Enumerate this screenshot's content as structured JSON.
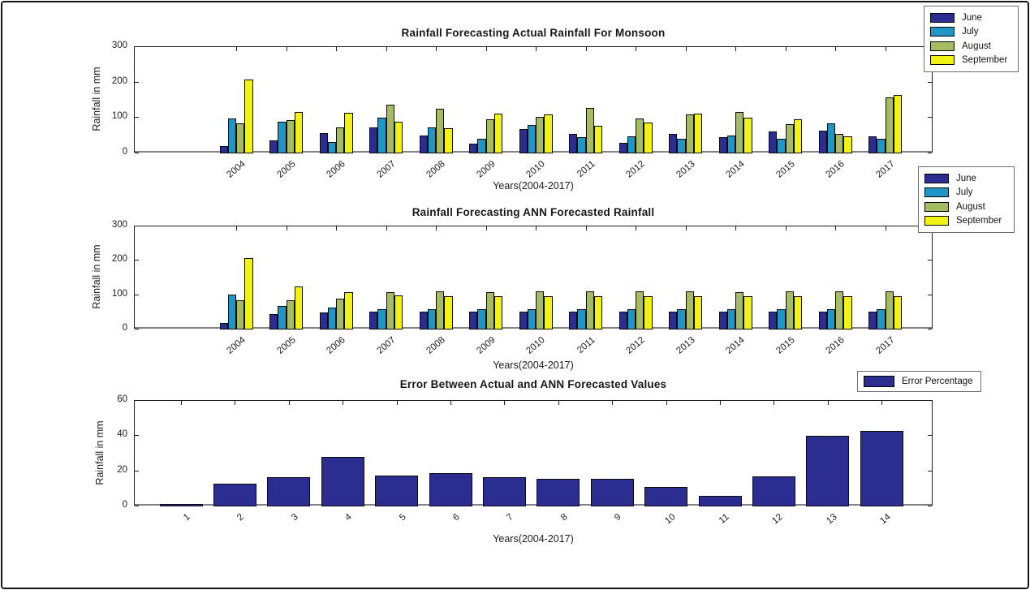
{
  "chart_data": [
    {
      "type": "bar",
      "title": "Rainfall Forecasting Actual Rainfall For Monsoon",
      "xlabel": "Years(2004-2017)",
      "ylabel": "Rainfall in mm",
      "ylim": [
        0,
        300
      ],
      "yticks": [
        0,
        100,
        200,
        300
      ],
      "grid": false,
      "legend_position": "outside-top-right",
      "categories": [
        "2004",
        "2005",
        "2006",
        "2007",
        "2008",
        "2009",
        "2010",
        "2011",
        "2012",
        "2013",
        "2014",
        "2015",
        "2016",
        "2017"
      ],
      "series": [
        {
          "name": "June",
          "color": "#2B2D90",
          "values": [
            21,
            36,
            57,
            73,
            51,
            27,
            69,
            56,
            29,
            54,
            46,
            62,
            63,
            47
          ]
        },
        {
          "name": "July",
          "color": "#1F96C6",
          "values": [
            99,
            89,
            33,
            100,
            73,
            42,
            80,
            45,
            47,
            41,
            50,
            42,
            84,
            41
          ]
        },
        {
          "name": "August",
          "color": "#A5BC62",
          "values": [
            85,
            93,
            73,
            137,
            126,
            96,
            102,
            129,
            99,
            110,
            116,
            82,
            54,
            159
          ]
        },
        {
          "name": "September",
          "color": "#F2F214",
          "values": [
            209,
            117,
            115,
            89,
            70,
            113,
            110,
            77,
            88,
            113,
            100,
            96,
            48,
            164
          ]
        }
      ]
    },
    {
      "type": "bar",
      "title": "Rainfall Forecasting ANN Forecasted Rainfall",
      "xlabel": "Years(2004-2017)",
      "ylabel": "Rainfall in mm",
      "ylim": [
        0,
        300
      ],
      "yticks": [
        0,
        100,
        200,
        300
      ],
      "grid": false,
      "legend_position": "outside-top-right",
      "categories": [
        "2004",
        "2005",
        "2006",
        "2007",
        "2008",
        "2009",
        "2010",
        "2011",
        "2012",
        "2013",
        "2014",
        "2015",
        "2016",
        "2017"
      ],
      "series": [
        {
          "name": "June",
          "color": "#2B2D90",
          "values": [
            20,
            45,
            50,
            52,
            53,
            53,
            52,
            52,
            52,
            52,
            52,
            52,
            52,
            52
          ]
        },
        {
          "name": "July",
          "color": "#1F96C6",
          "values": [
            101,
            68,
            64,
            60,
            59,
            59,
            58,
            58,
            58,
            58,
            58,
            58,
            58,
            58
          ]
        },
        {
          "name": "August",
          "color": "#A5BC62",
          "values": [
            85,
            85,
            90,
            108,
            110,
            109,
            110,
            110,
            110,
            110,
            109,
            110,
            110,
            110
          ]
        },
        {
          "name": "September",
          "color": "#F2F214",
          "values": [
            209,
            125,
            108,
            99,
            97,
            97,
            97,
            98,
            97,
            97,
            97,
            97,
            97,
            97
          ]
        }
      ]
    },
    {
      "type": "bar",
      "title": "Error Between Actual and ANN Forecasted Values",
      "xlabel": "Years(2004-2017)",
      "ylabel": "Rainfall in mm",
      "ylim": [
        0,
        60
      ],
      "yticks": [
        0,
        20,
        40,
        60
      ],
      "grid": false,
      "legend_position": "outside-top-right",
      "categories": [
        "1",
        "2",
        "3",
        "4",
        "5",
        "6",
        "7",
        "8",
        "9",
        "10",
        "11",
        "12",
        "13",
        "14"
      ],
      "series": [
        {
          "name": "Error Percentage",
          "color": "#2B2D90",
          "values": [
            1.5,
            13,
            16.5,
            28,
            17.5,
            19,
            16.5,
            15.5,
            15.5,
            11,
            6,
            17,
            40,
            43
          ]
        }
      ]
    }
  ]
}
